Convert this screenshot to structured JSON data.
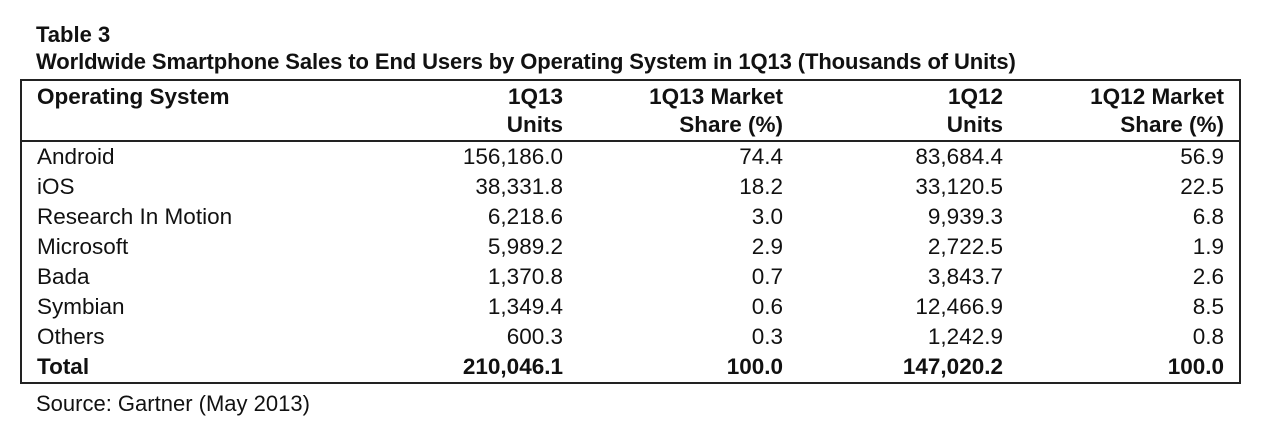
{
  "title": "Table 3",
  "subtitle": "Worldwide Smartphone Sales to End Users by Operating System in 1Q13 (Thousands of Units)",
  "source": "Source: Gartner (May 2013)",
  "chart_data": {
    "type": "table",
    "columns": [
      [
        "Operating System",
        ""
      ],
      [
        "1Q13",
        "Units"
      ],
      [
        "1Q13 Market",
        "Share (%)"
      ],
      [
        "1Q12",
        "Units"
      ],
      [
        "1Q12 Market",
        "Share (%)"
      ]
    ],
    "rows": [
      [
        "Android",
        "156,186.0",
        "74.4",
        "83,684.4",
        "56.9"
      ],
      [
        "iOS",
        "38,331.8",
        "18.2",
        "33,120.5",
        "22.5"
      ],
      [
        "Research In Motion",
        "6,218.6",
        "3.0",
        "9,939.3",
        "6.8"
      ],
      [
        "Microsoft",
        "5,989.2",
        "2.9",
        "2,722.5",
        "1.9"
      ],
      [
        "Bada",
        "1,370.8",
        "0.7",
        "3,843.7",
        "2.6"
      ],
      [
        "Symbian",
        "1,349.4",
        "0.6",
        "12,466.9",
        "8.5"
      ],
      [
        "Others",
        "600.3",
        "0.3",
        "1,242.9",
        "0.8"
      ],
      [
        "Total",
        "210,046.1",
        "100.0",
        "147,020.2",
        "100.0"
      ]
    ]
  }
}
